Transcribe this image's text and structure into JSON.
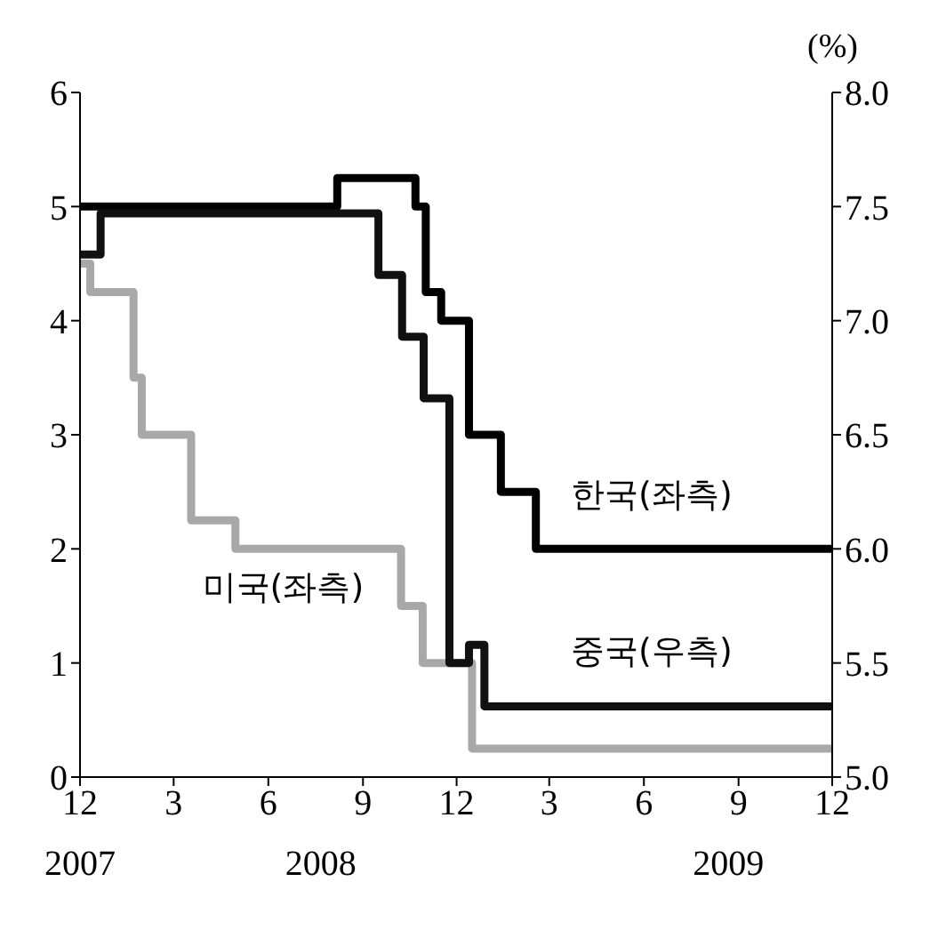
{
  "chart_data": {
    "type": "step",
    "y2label": "(%)",
    "xlim": [
      "2007-12-01",
      "2009-12-01"
    ],
    "xticks": [
      {
        "value": "2007-12",
        "label": "12"
      },
      {
        "value": "2008-03",
        "label": "3"
      },
      {
        "value": "2008-06",
        "label": "6"
      },
      {
        "value": "2008-09",
        "label": "9"
      },
      {
        "value": "2008-12",
        "label": "12"
      },
      {
        "value": "2009-03",
        "label": "3"
      },
      {
        "value": "2009-06",
        "label": "6"
      },
      {
        "value": "2009-09",
        "label": "9"
      },
      {
        "value": "2009-12",
        "label": "12"
      }
    ],
    "ylim": [
      0,
      6
    ],
    "yticks": [
      0,
      1,
      2,
      3,
      4,
      5,
      6
    ],
    "y2lim": [
      5,
      8
    ],
    "y2ticks": [
      {
        "value": 5,
        "label": "5.0"
      },
      {
        "value": 5.5,
        "label": "5.5"
      },
      {
        "value": 6,
        "label": "6.0"
      },
      {
        "value": 6.5,
        "label": "6.5"
      },
      {
        "value": 7,
        "label": "7.0"
      },
      {
        "value": 7.5,
        "label": "7.5"
      },
      {
        "value": 8,
        "label": "8.0"
      }
    ],
    "grid": false,
    "legend": false,
    "marker": "none",
    "line_style": "solid",
    "annotations": [
      "2007",
      "2008",
      "2009"
    ],
    "series": [
      {
        "name": "한국(좌측)",
        "color": "#000000",
        "x": [
          "2007-12-01",
          "2008-08-07",
          "2008-10-22",
          "2008-11-01",
          "2008-11-16",
          "2008-12-13",
          "2009-01-13",
          "2009-02-16",
          "2009-12-01"
        ],
        "values": [
          5,
          5.25,
          5,
          4.25,
          4,
          3,
          2.5,
          2,
          2
        ]
      },
      {
        "name": "미국(좌측)",
        "color": "#a8a8a8",
        "x": [
          "2007-12-01",
          "2007-12-11",
          "2008-01-22",
          "2008-01-30",
          "2008-03-18",
          "2008-04-30",
          "2008-10-08",
          "2008-10-29",
          "2008-12-16",
          "2009-12-01"
        ],
        "values": [
          4.5,
          4.25,
          3.5,
          3,
          2.25,
          2,
          1.5,
          1,
          0.25,
          0.25
        ]
      },
      {
        "name": "중국(우측)",
        "color": "#111111",
        "axis": "y2",
        "x": [
          "2007-12-01",
          "2007-12-21",
          "2008-09-16",
          "2008-10-09",
          "2008-10-30",
          "2008-11-24",
          "2008-12-13",
          "2008-12-28",
          "2009-12-01"
        ],
        "values": [
          7.29,
          7.47,
          7.2,
          6.93,
          6.66,
          5.5,
          5.58,
          5.31,
          5.31
        ]
      }
    ]
  }
}
